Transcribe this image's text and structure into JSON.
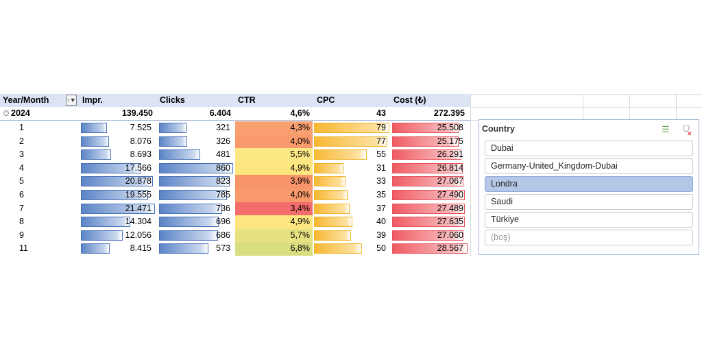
{
  "pivot": {
    "headers": {
      "year_month": "Year/Month",
      "impr": "Impr.",
      "clicks": "Clicks",
      "ctr": "CTR",
      "cpc": "CPC",
      "cost": "Cost (₺)"
    },
    "total": {
      "label": "2024",
      "impr": "139.450",
      "clicks": "6.404",
      "ctr": "4,6%",
      "cpc": "43",
      "cost": "272.395"
    },
    "rows": [
      {
        "month": "1",
        "impr": "7.525",
        "impr_v": 7525,
        "clicks": "321",
        "clicks_v": 321,
        "ctr": "4,3%",
        "ctr_color": "#f8a070",
        "cpc": "79",
        "cpc_v": 79,
        "cost": "25.508",
        "cost_v": 25508
      },
      {
        "month": "2",
        "impr": "8.076",
        "impr_v": 8076,
        "clicks": "326",
        "clicks_v": 326,
        "ctr": "4,0%",
        "ctr_color": "#f89a6c",
        "cpc": "77",
        "cpc_v": 77,
        "cost": "25.175",
        "cost_v": 25175
      },
      {
        "month": "3",
        "impr": "8.693",
        "impr_v": 8693,
        "clicks": "481",
        "clicks_v": 481,
        "ctr": "5,5%",
        "ctr_color": "#fbe784",
        "cpc": "55",
        "cpc_v": 55,
        "cost": "26.291",
        "cost_v": 26291
      },
      {
        "month": "4",
        "impr": "17.566",
        "impr_v": 17566,
        "clicks": "860",
        "clicks_v": 860,
        "ctr": "4,9%",
        "ctr_color": "#fde57f",
        "cpc": "31",
        "cpc_v": 31,
        "cost": "26.814",
        "cost_v": 26814
      },
      {
        "month": "5",
        "impr": "20.878",
        "impr_v": 20878,
        "clicks": "823",
        "clicks_v": 823,
        "ctr": "3,9%",
        "ctr_color": "#f8946a",
        "cpc": "33",
        "cpc_v": 33,
        "cost": "27.067",
        "cost_v": 27067
      },
      {
        "month": "6",
        "impr": "19.555",
        "impr_v": 19555,
        "clicks": "785",
        "clicks_v": 785,
        "ctr": "4,0%",
        "ctr_color": "#f89a6c",
        "cpc": "35",
        "cpc_v": 35,
        "cost": "27.490",
        "cost_v": 27490
      },
      {
        "month": "7",
        "impr": "21.471",
        "impr_v": 21471,
        "clicks": "736",
        "clicks_v": 736,
        "ctr": "3,4%",
        "ctr_color": "#f46c6c",
        "cpc": "37",
        "cpc_v": 37,
        "cost": "27.489",
        "cost_v": 27489
      },
      {
        "month": "8",
        "impr": "14.304",
        "impr_v": 14304,
        "clicks": "696",
        "clicks_v": 696,
        "ctr": "4,9%",
        "ctr_color": "#fde57f",
        "cpc": "40",
        "cpc_v": 40,
        "cost": "27.635",
        "cost_v": 27635
      },
      {
        "month": "9",
        "impr": "12.056",
        "impr_v": 12056,
        "clicks": "686",
        "clicks_v": 686,
        "ctr": "5,7%",
        "ctr_color": "#e8e182",
        "cpc": "39",
        "cpc_v": 39,
        "cost": "27.060",
        "cost_v": 27060
      },
      {
        "month": "11",
        "impr": "8.415",
        "impr_v": 8415,
        "clicks": "573",
        "clicks_v": 573,
        "ctr": "6,8%",
        "ctr_color": "#d8dd80",
        "cpc": "50",
        "cpc_v": 50,
        "cost": "28.567",
        "cost_v": 28567
      }
    ],
    "max": {
      "impr": 21471,
      "clicks": 860,
      "cpc": 79,
      "cost": 28567
    }
  },
  "slicer": {
    "title": "Country",
    "multiselect_icon": "multi-select-icon",
    "clear_icon": "clear-filter-icon",
    "items": [
      {
        "label": "Dubai",
        "selected": false,
        "dim": false
      },
      {
        "label": "Germany-United_Kingdom-Dubai",
        "selected": false,
        "dim": false
      },
      {
        "label": "Londra",
        "selected": true,
        "dim": false
      },
      {
        "label": "Saudi",
        "selected": false,
        "dim": false
      },
      {
        "label": "Türkiye",
        "selected": false,
        "dim": false
      },
      {
        "label": "(boş)",
        "selected": false,
        "dim": true
      }
    ]
  }
}
